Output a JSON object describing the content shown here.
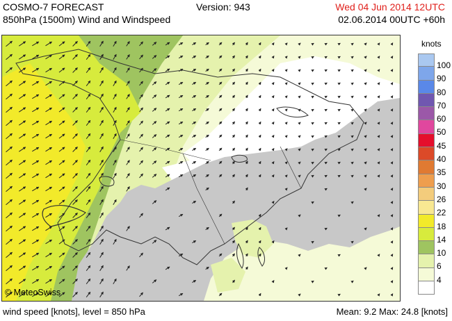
{
  "header": {
    "title": "COSMO-7 FORECAST",
    "subtitle": "850hPa (1500m) Wind and Windspeed",
    "version": "Version: 943",
    "valid_time": "Wed 04 Jun 2014 12UTC",
    "run_time": "02.06.2014 00UTC +60h"
  },
  "map": {
    "copyright": "© MeteoSwiss",
    "colors": {
      "calm": "#ffffff",
      "c4": "#f5fad7",
      "c6": "#e5f2ad",
      "c10": "#9fc460",
      "c14": "#d7eb3d",
      "c18": "#f2ea2a",
      "terrain": "#c8c8c8",
      "outline": "#333333"
    }
  },
  "legend": {
    "unit": "knots",
    "entries": [
      {
        "label": "100",
        "color": "#aac8f0"
      },
      {
        "label": "90",
        "color": "#7ea6ea"
      },
      {
        "label": "80",
        "color": "#5a88e8"
      },
      {
        "label": "70",
        "color": "#7057b0"
      },
      {
        "label": "60",
        "color": "#9b58a8"
      },
      {
        "label": "50",
        "color": "#e0479e"
      },
      {
        "label": "45",
        "color": "#e50f2c"
      },
      {
        "label": "40",
        "color": "#dc4a28"
      },
      {
        "label": "35",
        "color": "#e07a32"
      },
      {
        "label": "30",
        "color": "#ee9e4e"
      },
      {
        "label": "26",
        "color": "#f3cc7c"
      },
      {
        "label": "22",
        "color": "#f8e892"
      },
      {
        "label": "18",
        "color": "#f2ea2a"
      },
      {
        "label": "14",
        "color": "#d7eb3d"
      },
      {
        "label": "10",
        "color": "#9fc460"
      },
      {
        "label": "6",
        "color": "#e5f2ad"
      },
      {
        "label": "4",
        "color": "#f5fad7"
      },
      {
        "label": "",
        "color": "#ffffff"
      }
    ]
  },
  "footer": {
    "left": "wind speed [knots], level = 850 hPa",
    "right": "Mean:   9.2 Max:   24.8 [knots]"
  }
}
